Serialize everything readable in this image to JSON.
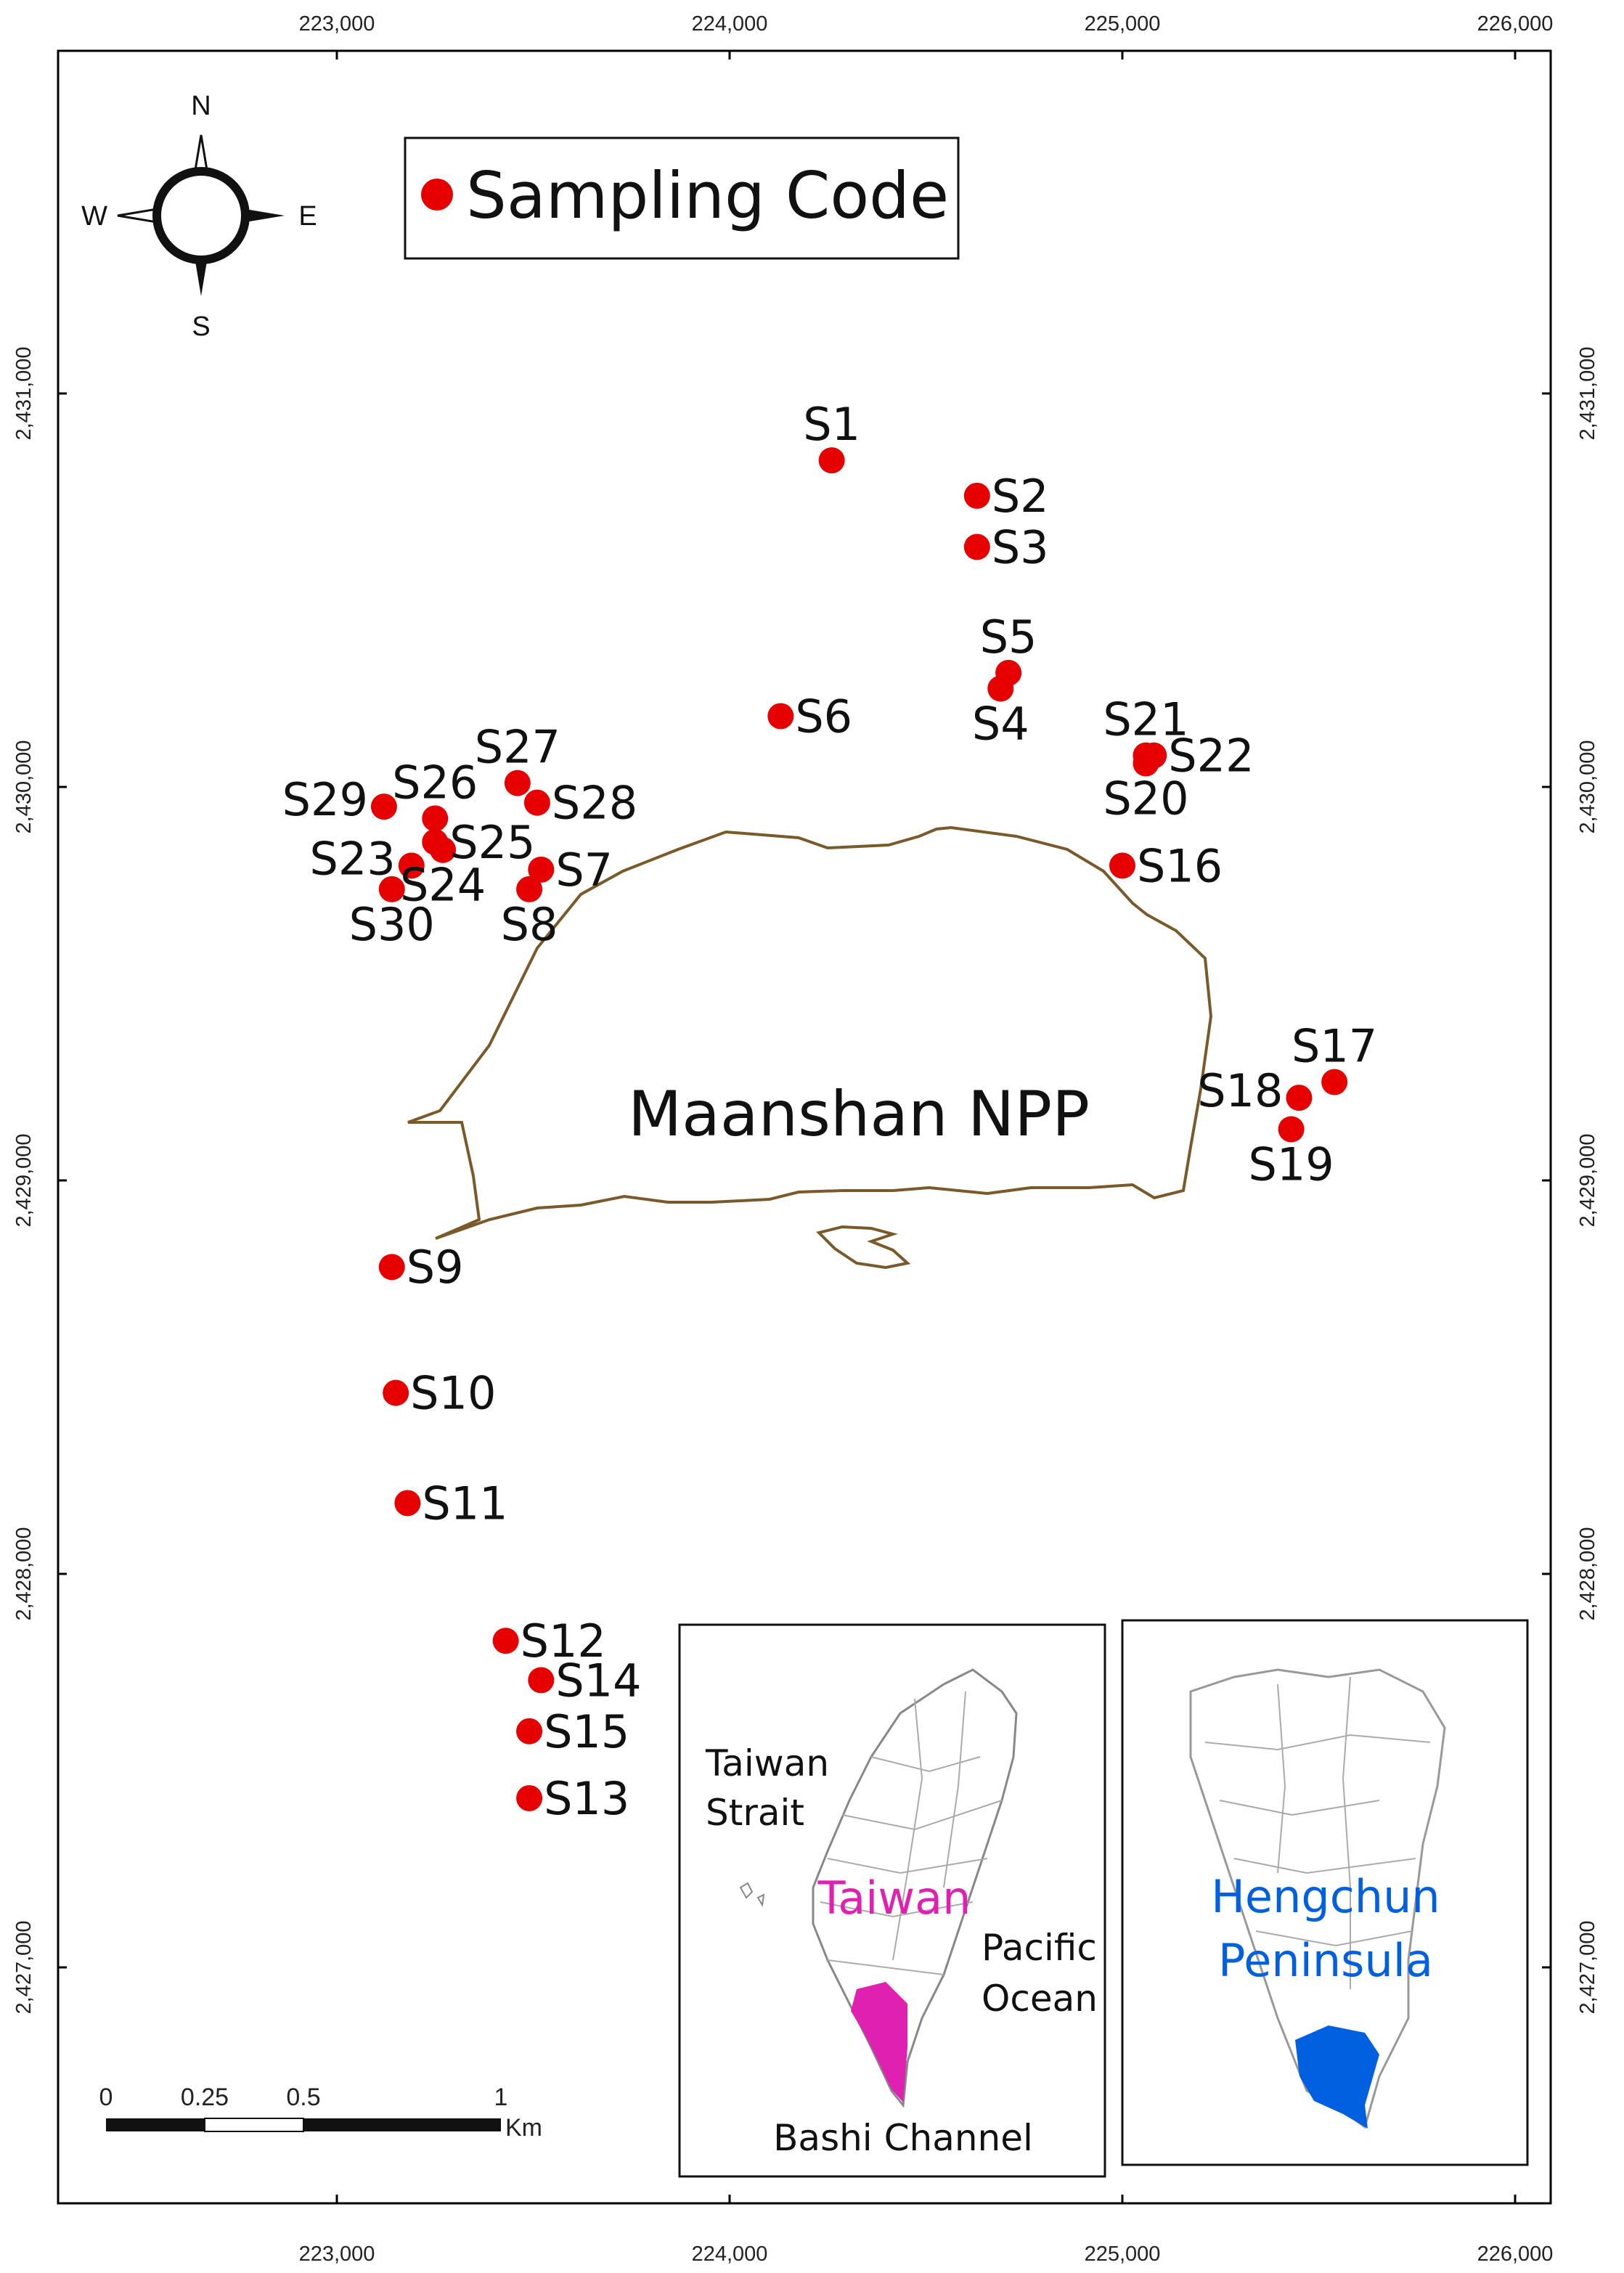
{
  "axes": {
    "x_ticks": [
      "223,000",
      "224,000",
      "225,000",
      "226,000"
    ],
    "y_ticks": [
      "2,431,000",
      "2,430,000",
      "2,429,000",
      "2,428,000",
      "2,427,000"
    ]
  },
  "compass": {
    "n": "N",
    "s": "S",
    "e": "E",
    "w": "W"
  },
  "legend": {
    "label": "Sampling Code",
    "marker_color": "#e60000"
  },
  "facility": {
    "label": "Maanshan NPP",
    "outline_color": "#7a5a2a"
  },
  "sites": [
    {
      "code": "S1",
      "x": 224260,
      "y": 2430830,
      "label_pos": "above"
    },
    {
      "code": "S2",
      "x": 224630,
      "y": 2430740,
      "label_pos": "right"
    },
    {
      "code": "S3",
      "x": 224630,
      "y": 2430610,
      "label_pos": "right"
    },
    {
      "code": "S4",
      "x": 224690,
      "y": 2430250,
      "label_pos": "below"
    },
    {
      "code": "S5",
      "x": 224710,
      "y": 2430290,
      "label_pos": "above"
    },
    {
      "code": "S6",
      "x": 224130,
      "y": 2430180,
      "label_pos": "right"
    },
    {
      "code": "S7",
      "x": 223520,
      "y": 2429790,
      "label_pos": "right"
    },
    {
      "code": "S8",
      "x": 223490,
      "y": 2429740,
      "label_pos": "below"
    },
    {
      "code": "S9",
      "x": 223140,
      "y": 2428780,
      "label_pos": "right"
    },
    {
      "code": "S10",
      "x": 223150,
      "y": 2428460,
      "label_pos": "right"
    },
    {
      "code": "S11",
      "x": 223180,
      "y": 2428180,
      "label_pos": "right"
    },
    {
      "code": "S12",
      "x": 223430,
      "y": 2427830,
      "label_pos": "right"
    },
    {
      "code": "S13",
      "x": 223490,
      "y": 2427430,
      "label_pos": "right"
    },
    {
      "code": "S14",
      "x": 223520,
      "y": 2427730,
      "label_pos": "right"
    },
    {
      "code": "S15",
      "x": 223490,
      "y": 2427600,
      "label_pos": "right"
    },
    {
      "code": "S16",
      "x": 225000,
      "y": 2429800,
      "label_pos": "right"
    },
    {
      "code": "S17",
      "x": 225540,
      "y": 2429250,
      "label_pos": "above"
    },
    {
      "code": "S18",
      "x": 225450,
      "y": 2429210,
      "label_pos": "left"
    },
    {
      "code": "S19",
      "x": 225430,
      "y": 2429130,
      "label_pos": "below"
    },
    {
      "code": "S20",
      "x": 225060,
      "y": 2430060,
      "label_pos": "below"
    },
    {
      "code": "S21",
      "x": 225060,
      "y": 2430080,
      "label_pos": "above"
    },
    {
      "code": "S22",
      "x": 225080,
      "y": 2430080,
      "label_pos": "right"
    },
    {
      "code": "S23",
      "x": 223190,
      "y": 2429800,
      "label_pos": "left"
    },
    {
      "code": "S24",
      "x": 223270,
      "y": 2429840,
      "label_pos": "below"
    },
    {
      "code": "S25",
      "x": 223250,
      "y": 2429860,
      "label_pos": "right"
    },
    {
      "code": "S26",
      "x": 223250,
      "y": 2429920,
      "label_pos": "above"
    },
    {
      "code": "S27",
      "x": 223460,
      "y": 2430010,
      "label_pos": "above"
    },
    {
      "code": "S28",
      "x": 223510,
      "y": 2429960,
      "label_pos": "right"
    },
    {
      "code": "S29",
      "x": 223120,
      "y": 2429950,
      "label_pos": "left"
    },
    {
      "code": "S30",
      "x": 223140,
      "y": 2429740,
      "label_pos": "below"
    }
  ],
  "scalebar": {
    "labels": [
      "0",
      "0.25",
      "0.5",
      "1"
    ],
    "unit": "Km"
  },
  "inset_taiwan": {
    "strait": "Taiwan Strait",
    "strait_line1": "Taiwan",
    "strait_line2": "Strait",
    "island": "Taiwan",
    "ocean_line1": "Pacific",
    "ocean_line2": "Ocean",
    "channel": "Bashi Channel",
    "highlight_color": "#e020b0"
  },
  "inset_peninsula": {
    "line1": "Hengchun",
    "line2": "Peninsula",
    "highlight_color": "#0060e0"
  }
}
